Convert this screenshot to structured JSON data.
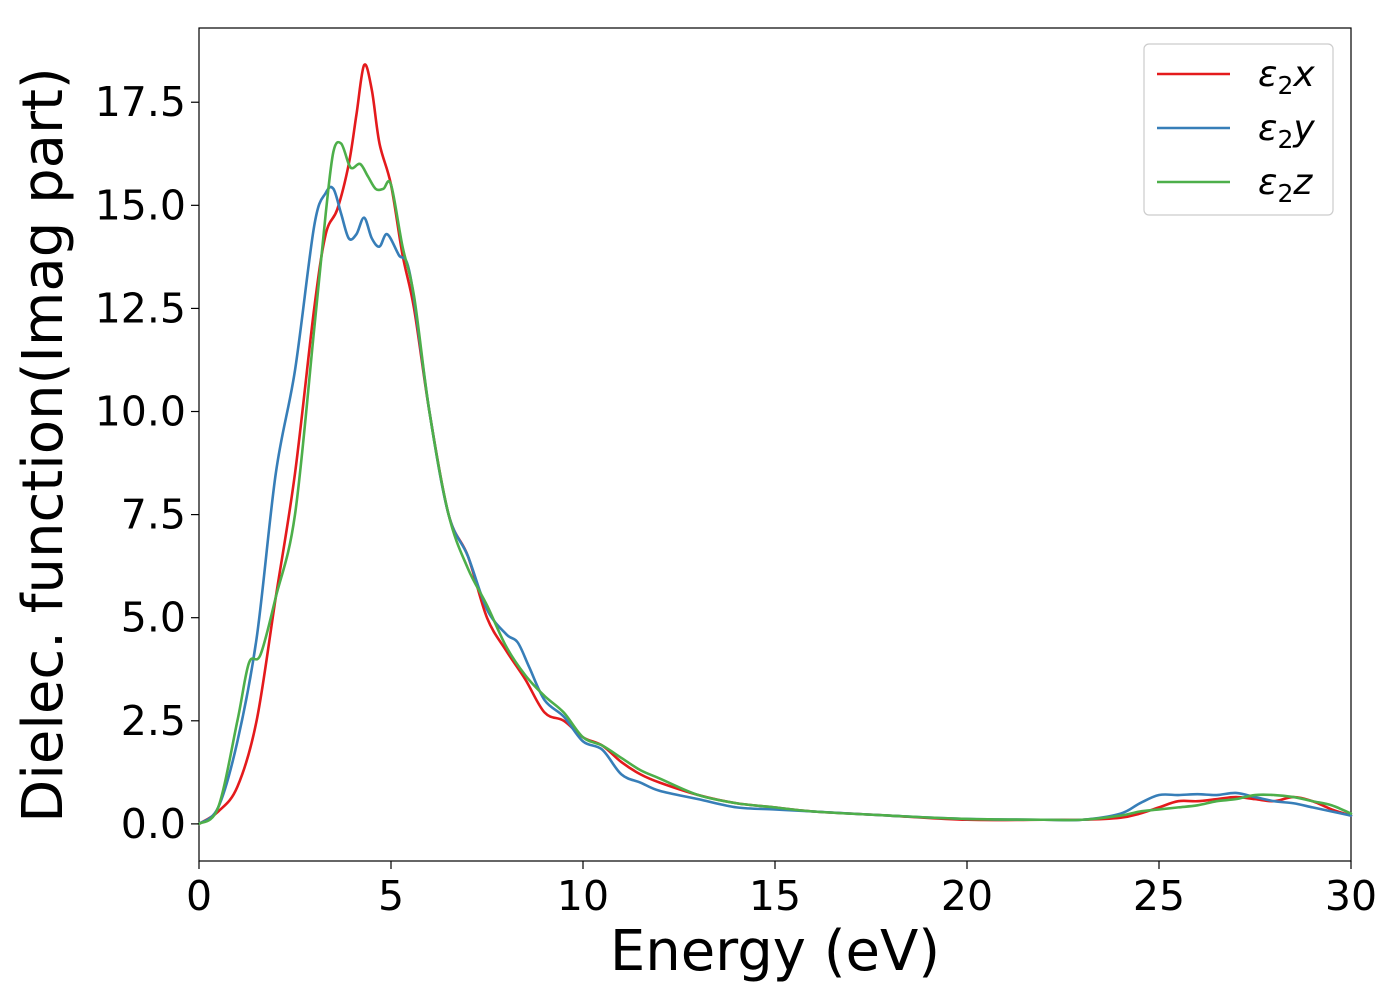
{
  "chart_data": {
    "type": "line",
    "xlabel": "Energy (eV)",
    "ylabel": "Dielec. function(Imag part)",
    "xlim": [
      0,
      30
    ],
    "ylim": [
      -0.9,
      19.3
    ],
    "xticks": [
      0,
      5,
      10,
      15,
      20,
      25,
      30
    ],
    "xtick_labels": [
      "0",
      "5",
      "10",
      "15",
      "20",
      "25",
      "30"
    ],
    "yticks": [
      0.0,
      2.5,
      5.0,
      7.5,
      10.0,
      12.5,
      15.0,
      17.5
    ],
    "ytick_labels": [
      "0.0",
      "2.5",
      "5.0",
      "7.5",
      "10.0",
      "12.5",
      "15.0",
      "17.5"
    ],
    "grid": false,
    "legend_position": "top-right",
    "series": [
      {
        "name": "ε2x",
        "name_base": "ε",
        "name_sub": "2",
        "name_tail": "x",
        "color": "#e41a1c",
        "x": [
          0,
          0.5,
          1.0,
          1.5,
          2.0,
          2.5,
          3.0,
          3.3,
          3.6,
          3.9,
          4.1,
          4.3,
          4.5,
          4.7,
          5.0,
          5.3,
          5.6,
          6.0,
          6.5,
          7.0,
          7.5,
          8.0,
          8.5,
          9.0,
          9.5,
          10.0,
          10.5,
          11.0,
          11.5,
          12.0,
          13.0,
          14.0,
          15.0,
          16.0,
          18.0,
          20.0,
          22.0,
          23.0,
          24.0,
          24.5,
          25.0,
          25.5,
          26.0,
          26.5,
          27.0,
          27.5,
          28.0,
          28.5,
          29.0,
          29.5,
          30.0
        ],
        "y": [
          0.0,
          0.3,
          0.9,
          2.5,
          5.5,
          8.5,
          12.5,
          14.3,
          14.9,
          16.0,
          17.2,
          18.4,
          17.8,
          16.5,
          15.5,
          13.8,
          12.5,
          10.0,
          7.5,
          6.5,
          5.0,
          4.2,
          3.5,
          2.7,
          2.5,
          2.1,
          1.9,
          1.5,
          1.2,
          1.0,
          0.7,
          0.5,
          0.4,
          0.3,
          0.2,
          0.1,
          0.1,
          0.1,
          0.15,
          0.25,
          0.4,
          0.55,
          0.55,
          0.6,
          0.65,
          0.6,
          0.55,
          0.65,
          0.55,
          0.35,
          0.2
        ]
      },
      {
        "name": "ε2y",
        "name_base": "ε",
        "name_sub": "2",
        "name_tail": "y",
        "color": "#377eb8",
        "x": [
          0,
          0.5,
          1.0,
          1.5,
          2.0,
          2.5,
          3.0,
          3.3,
          3.5,
          3.7,
          3.9,
          4.1,
          4.3,
          4.5,
          4.7,
          4.9,
          5.2,
          5.5,
          6.0,
          6.5,
          7.0,
          7.5,
          8.0,
          8.3,
          8.6,
          9.0,
          9.5,
          10.0,
          10.5,
          11.0,
          11.5,
          12.0,
          13.0,
          14.0,
          15.0,
          16.0,
          18.0,
          20.0,
          22.0,
          23.0,
          24.0,
          24.5,
          25.0,
          25.5,
          26.0,
          26.5,
          27.0,
          27.5,
          28.0,
          28.5,
          29.0,
          29.5,
          30.0
        ],
        "y": [
          0.0,
          0.4,
          2.0,
          4.5,
          8.5,
          11.0,
          14.5,
          15.3,
          15.4,
          14.8,
          14.2,
          14.3,
          14.7,
          14.2,
          14.0,
          14.3,
          13.8,
          13.3,
          10.0,
          7.5,
          6.5,
          5.2,
          4.6,
          4.4,
          3.8,
          3.0,
          2.6,
          2.0,
          1.8,
          1.2,
          1.0,
          0.8,
          0.6,
          0.4,
          0.35,
          0.3,
          0.2,
          0.12,
          0.1,
          0.1,
          0.25,
          0.5,
          0.7,
          0.7,
          0.72,
          0.7,
          0.75,
          0.65,
          0.55,
          0.5,
          0.4,
          0.3,
          0.2
        ]
      },
      {
        "name": "ε2z",
        "name_base": "ε",
        "name_sub": "2",
        "name_tail": "z",
        "color": "#4daf4a",
        "x": [
          0,
          0.5,
          1.0,
          1.3,
          1.6,
          2.0,
          2.5,
          3.0,
          3.3,
          3.5,
          3.7,
          3.9,
          4.0,
          4.2,
          4.4,
          4.6,
          4.8,
          5.0,
          5.3,
          5.6,
          6.0,
          6.5,
          7.0,
          7.5,
          8.0,
          8.5,
          9.0,
          9.5,
          10.0,
          10.5,
          11.0,
          11.5,
          12.0,
          13.0,
          14.0,
          15.0,
          16.0,
          18.0,
          20.0,
          22.0,
          23.0,
          24.0,
          24.5,
          25.0,
          25.5,
          26.0,
          26.5,
          27.0,
          27.5,
          28.0,
          28.5,
          29.0,
          29.5,
          30.0
        ],
        "y": [
          0.0,
          0.4,
          2.5,
          3.9,
          4.1,
          5.5,
          7.5,
          12.0,
          14.8,
          16.3,
          16.5,
          16.0,
          15.9,
          16.0,
          15.7,
          15.4,
          15.4,
          15.5,
          14.0,
          12.8,
          10.0,
          7.5,
          6.2,
          5.3,
          4.3,
          3.6,
          3.1,
          2.7,
          2.1,
          1.9,
          1.6,
          1.3,
          1.1,
          0.7,
          0.5,
          0.4,
          0.3,
          0.2,
          0.12,
          0.1,
          0.1,
          0.2,
          0.3,
          0.35,
          0.4,
          0.45,
          0.55,
          0.6,
          0.7,
          0.7,
          0.65,
          0.55,
          0.45,
          0.25
        ]
      }
    ]
  }
}
